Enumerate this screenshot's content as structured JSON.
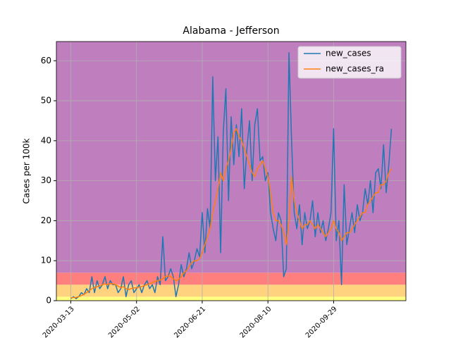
{
  "chart_data": {
    "type": "line",
    "title": "Alabama - Jefferson",
    "ylabel": "Cases per 100k",
    "x": [
      "2020-03-13",
      "2020-03-15",
      "2020-03-17",
      "2020-03-19",
      "2020-03-21",
      "2020-03-23",
      "2020-03-25",
      "2020-03-27",
      "2020-03-29",
      "2020-03-31",
      "2020-04-02",
      "2020-04-04",
      "2020-04-06",
      "2020-04-08",
      "2020-04-10",
      "2020-04-12",
      "2020-04-14",
      "2020-04-16",
      "2020-04-18",
      "2020-04-20",
      "2020-04-22",
      "2020-04-24",
      "2020-04-26",
      "2020-04-28",
      "2020-04-30",
      "2020-05-02",
      "2020-05-04",
      "2020-05-06",
      "2020-05-08",
      "2020-05-10",
      "2020-05-12",
      "2020-05-14",
      "2020-05-16",
      "2020-05-18",
      "2020-05-20",
      "2020-05-22",
      "2020-05-24",
      "2020-05-26",
      "2020-05-28",
      "2020-05-30",
      "2020-06-01",
      "2020-06-03",
      "2020-06-05",
      "2020-06-07",
      "2020-06-09",
      "2020-06-11",
      "2020-06-13",
      "2020-06-15",
      "2020-06-17",
      "2020-06-19",
      "2020-06-21",
      "2020-06-23",
      "2020-06-25",
      "2020-06-27",
      "2020-06-29",
      "2020-07-01",
      "2020-07-03",
      "2020-07-05",
      "2020-07-07",
      "2020-07-09",
      "2020-07-11",
      "2020-07-13",
      "2020-07-15",
      "2020-07-17",
      "2020-07-19",
      "2020-07-21",
      "2020-07-23",
      "2020-07-25",
      "2020-07-27",
      "2020-07-29",
      "2020-07-31",
      "2020-08-02",
      "2020-08-04",
      "2020-08-06",
      "2020-08-08",
      "2020-08-10",
      "2020-08-12",
      "2020-08-14",
      "2020-08-16",
      "2020-08-18",
      "2020-08-20",
      "2020-08-22",
      "2020-08-24",
      "2020-08-26",
      "2020-08-28",
      "2020-08-30",
      "2020-09-01",
      "2020-09-03",
      "2020-09-05",
      "2020-09-07",
      "2020-09-09",
      "2020-09-11",
      "2020-09-13",
      "2020-09-15",
      "2020-09-17",
      "2020-09-19",
      "2020-09-21",
      "2020-09-23",
      "2020-09-25",
      "2020-09-27",
      "2020-09-29",
      "2020-10-01",
      "2020-10-03",
      "2020-10-05",
      "2020-10-07",
      "2020-10-09",
      "2020-10-11",
      "2020-10-13",
      "2020-10-15",
      "2020-10-17",
      "2020-10-19",
      "2020-10-21",
      "2020-10-23",
      "2020-10-25",
      "2020-10-27",
      "2020-10-29",
      "2020-10-31",
      "2020-11-02",
      "2020-11-04",
      "2020-11-06",
      "2020-11-08",
      "2020-11-10",
      "2020-11-12"
    ],
    "series": [
      {
        "name": "new_cases",
        "color": "#1f77b4",
        "values": [
          0.5,
          1,
          0.5,
          1,
          2,
          1.5,
          3,
          2,
          6,
          2,
          5,
          3,
          4,
          6,
          3,
          5,
          4,
          4,
          2,
          3,
          6,
          1,
          4,
          5,
          2,
          3,
          4,
          2,
          4,
          5,
          3,
          4,
          2,
          6,
          4,
          16,
          5,
          6,
          8,
          6,
          1,
          4,
          9,
          6,
          8,
          12,
          8,
          10,
          13,
          11,
          22,
          12,
          23,
          18,
          56,
          30,
          41,
          12,
          42,
          53,
          25,
          46,
          34,
          44,
          36,
          48,
          28,
          38,
          45,
          30,
          44,
          48,
          35,
          36,
          30,
          32,
          22,
          18,
          15,
          22,
          20,
          6,
          8,
          62,
          40,
          22,
          18,
          24,
          14,
          22,
          18,
          20,
          25,
          16,
          22,
          17,
          20,
          15,
          18,
          22,
          43,
          15,
          20,
          4,
          29,
          14,
          18,
          22,
          17,
          24,
          20,
          22,
          28,
          24,
          30,
          22,
          32,
          33,
          28,
          39,
          27,
          34,
          43
        ]
      },
      {
        "name": "new_cases_ra",
        "color": "#ff7f0e",
        "values": [
          0.7,
          0.8,
          0.8,
          1,
          1.3,
          1.6,
          2,
          2.5,
          3,
          3.3,
          3.5,
          3.7,
          4,
          4.2,
          4,
          4.3,
          4.2,
          4,
          3.6,
          3.3,
          3.5,
          3,
          2.8,
          3,
          3.2,
          3.2,
          3.4,
          3.5,
          3.8,
          4,
          4.2,
          4.5,
          4.8,
          5,
          5.2,
          5.5,
          6,
          6.2,
          6,
          5.5,
          5,
          5.3,
          6,
          7,
          7.5,
          8.5,
          9.5,
          10,
          10,
          10.5,
          12,
          14,
          16,
          18,
          22,
          25,
          28,
          32,
          30,
          33,
          35,
          38,
          42,
          43,
          41,
          40,
          38,
          36,
          34,
          32,
          31,
          33,
          34,
          35,
          33,
          31,
          27,
          22,
          20,
          20,
          19,
          17,
          14,
          20,
          31,
          25,
          22,
          20,
          18,
          19,
          19,
          20,
          19,
          18,
          19,
          18,
          17,
          16,
          17,
          18,
          20,
          18,
          17,
          15,
          16,
          17,
          17,
          18,
          19,
          20,
          21,
          22,
          22,
          24,
          25,
          26,
          27,
          27,
          29,
          29,
          30,
          32,
          33
        ]
      }
    ],
    "xlim": [
      "2020-03-02",
      "2020-11-23"
    ],
    "xticks": [
      "2020-03-13",
      "2020-05-02",
      "2020-06-21",
      "2020-08-10",
      "2020-09-29"
    ],
    "ylim": [
      0,
      64.8
    ],
    "yticks": [
      0,
      10,
      20,
      30,
      40,
      50,
      60
    ],
    "grid": true,
    "legend": "upper right",
    "bands": [
      {
        "from": 0,
        "to": 1,
        "color": "#ffff80"
      },
      {
        "from": 1,
        "to": 4,
        "color": "#ffd27f"
      },
      {
        "from": 4,
        "to": 7,
        "color": "#ff7f7f"
      },
      {
        "from": 7,
        "to": 64.8,
        "color": "#bf7fbf"
      }
    ]
  }
}
